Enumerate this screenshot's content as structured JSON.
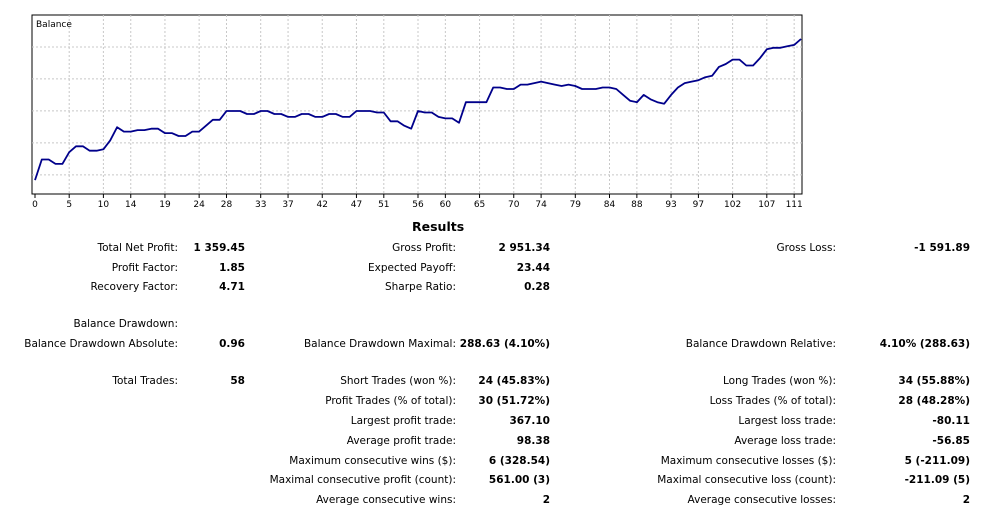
{
  "chart_data": {
    "type": "line",
    "title": "Balance",
    "x_ticks": [
      "0",
      "5",
      "10",
      "14",
      "19",
      "24",
      "28",
      "33",
      "37",
      "42",
      "47",
      "51",
      "56",
      "60",
      "65",
      "70",
      "74",
      "79",
      "84",
      "88",
      "93",
      "97",
      "102",
      "107",
      "111"
    ],
    "xlim": [
      0,
      112
    ],
    "ylim": [
      0,
      1
    ],
    "grid": true,
    "series": [
      {
        "color": "#00008b",
        "x": [
          0,
          1,
          2,
          3,
          4,
          5,
          6,
          7,
          8,
          9,
          10,
          11,
          12,
          13,
          14,
          15,
          16,
          17,
          18,
          19,
          20,
          21,
          22,
          23,
          24,
          25,
          26,
          27,
          28,
          29,
          30,
          31,
          32,
          33,
          34,
          35,
          36,
          37,
          38,
          39,
          40,
          41,
          42,
          43,
          44,
          45,
          46,
          47,
          48,
          49,
          50,
          51,
          52,
          53,
          54,
          55,
          56,
          57,
          58,
          59,
          60,
          61,
          62,
          63,
          64,
          65,
          66,
          67,
          68,
          69,
          70,
          71,
          72,
          73,
          74,
          75,
          76,
          77,
          78,
          79,
          80,
          81,
          82,
          83,
          84,
          85,
          86,
          87,
          88,
          89,
          90,
          91,
          92,
          93,
          94,
          95,
          96,
          97,
          98,
          99,
          100,
          101,
          102,
          103,
          104,
          105,
          106,
          107,
          108,
          109,
          110,
          111,
          112
        ],
        "y": [
          0.04,
          0.18,
          0.18,
          0.15,
          0.15,
          0.23,
          0.27,
          0.27,
          0.24,
          0.24,
          0.25,
          0.31,
          0.4,
          0.37,
          0.37,
          0.38,
          0.38,
          0.39,
          0.39,
          0.36,
          0.36,
          0.34,
          0.34,
          0.37,
          0.37,
          0.41,
          0.45,
          0.45,
          0.51,
          0.51,
          0.51,
          0.49,
          0.49,
          0.51,
          0.51,
          0.49,
          0.49,
          0.47,
          0.47,
          0.49,
          0.49,
          0.47,
          0.47,
          0.49,
          0.49,
          0.47,
          0.47,
          0.51,
          0.51,
          0.51,
          0.5,
          0.5,
          0.44,
          0.44,
          0.41,
          0.39,
          0.51,
          0.5,
          0.5,
          0.47,
          0.46,
          0.46,
          0.43,
          0.57,
          0.57,
          0.57,
          0.57,
          0.67,
          0.67,
          0.66,
          0.66,
          0.69,
          0.69,
          0.7,
          0.71,
          0.7,
          0.69,
          0.68,
          0.69,
          0.68,
          0.66,
          0.66,
          0.66,
          0.67,
          0.67,
          0.66,
          0.62,
          0.58,
          0.57,
          0.62,
          0.59,
          0.57,
          0.56,
          0.62,
          0.67,
          0.7,
          0.71,
          0.72,
          0.74,
          0.75,
          0.81,
          0.83,
          0.86,
          0.86,
          0.82,
          0.82,
          0.87,
          0.93,
          0.94,
          0.94,
          0.95,
          0.96,
          1.0
        ]
      }
    ]
  },
  "results": {
    "title": "Results",
    "col1": [
      {
        "label": "Total Net Profit:",
        "value": "1 359.45"
      },
      {
        "label": "Profit Factor:",
        "value": "1.85"
      },
      {
        "label": "Recovery Factor:",
        "value": "4.71"
      },
      {
        "label": "Balance Drawdown:",
        "value": ""
      },
      {
        "label": "Balance Drawdown Absolute:",
        "value": "0.96"
      },
      {
        "label": "Total Trades:",
        "value": "58"
      }
    ],
    "col2": [
      {
        "label": "Gross Profit:",
        "value": "2 951.34"
      },
      {
        "label": "Expected Payoff:",
        "value": "23.44"
      },
      {
        "label": "Sharpe Ratio:",
        "value": "0.28"
      },
      {
        "label": "Balance Drawdown Maximal:",
        "value": "288.63 (4.10%)"
      },
      {
        "label": "Short Trades (won %):",
        "value": "24 (45.83%)"
      },
      {
        "label": "Profit Trades (% of total):",
        "value": "30 (51.72%)"
      },
      {
        "label": "Largest profit trade:",
        "value": "367.10"
      },
      {
        "label": "Average profit trade:",
        "value": "98.38"
      },
      {
        "label": "Maximum consecutive wins ($):",
        "value": "6 (328.54)"
      },
      {
        "label": "Maximal consecutive profit (count):",
        "value": "561.00 (3)"
      },
      {
        "label": "Average consecutive wins:",
        "value": "2"
      }
    ],
    "col3": [
      {
        "label": "Gross Loss:",
        "value": "-1 591.89"
      },
      {
        "label": "Balance Drawdown Relative:",
        "value": "4.10% (288.63)"
      },
      {
        "label": "Long Trades (won %):",
        "value": "34 (55.88%)"
      },
      {
        "label": "Loss Trades (% of total):",
        "value": "28 (48.28%)"
      },
      {
        "label": "Largest loss trade:",
        "value": "-80.11"
      },
      {
        "label": "Average loss trade:",
        "value": "-56.85"
      },
      {
        "label": "Maximum consecutive losses ($):",
        "value": "5 (-211.09)"
      },
      {
        "label": "Maximal consecutive loss (count):",
        "value": "-211.09 (5)"
      },
      {
        "label": "Average consecutive losses:",
        "value": "2"
      }
    ]
  }
}
